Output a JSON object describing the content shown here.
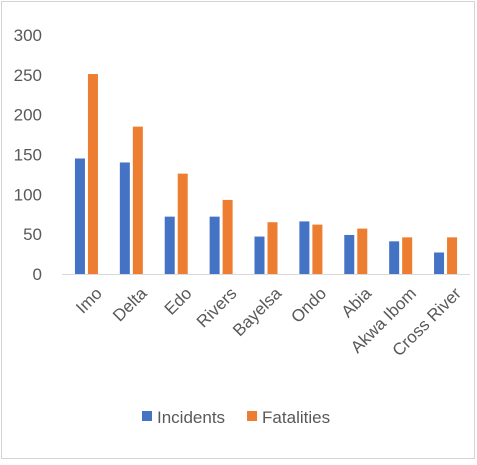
{
  "chart_data": {
    "type": "bar",
    "title": "",
    "xlabel": "",
    "ylabel": "",
    "ylim": [
      0,
      300
    ],
    "yticks": [
      0,
      50,
      100,
      150,
      200,
      250,
      300
    ],
    "grid": false,
    "legend_position": "bottom",
    "categories": [
      "Imo",
      "Delta",
      "Edo",
      "Rivers",
      "Bayelsa",
      "Ondo",
      "Abia",
      "Akwa Ibom",
      "Cross River"
    ],
    "series": [
      {
        "name": "Incidents",
        "color": "#4472c4",
        "values": [
          145,
          140,
          72,
          72,
          47,
          66,
          49,
          41,
          27
        ]
      },
      {
        "name": "Fatalities",
        "color": "#ed7d31",
        "values": [
          251,
          185,
          126,
          93,
          65,
          62,
          57,
          46,
          46
        ]
      }
    ]
  }
}
